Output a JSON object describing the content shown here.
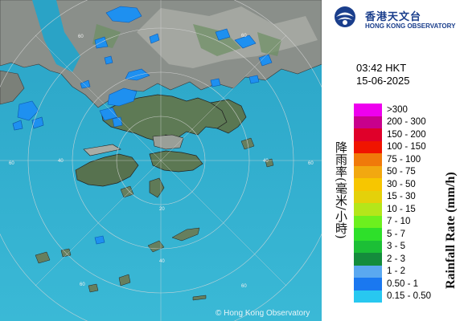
{
  "map": {
    "copyright": "© Hong Kong Observatory",
    "range_labels": [
      "60",
      "60",
      "60",
      "60",
      "60",
      "60",
      "40",
      "40",
      "40",
      "20"
    ]
  },
  "header": {
    "logo_zh": "香港天文台",
    "logo_en": "HONG KONG OBSERVATORY"
  },
  "timestamp": {
    "time": "03:42 HKT",
    "date": "15-06-2025"
  },
  "legend": {
    "title_zh": "降雨率(毫米/小時)",
    "title_en": "Rainfall Rate (mm/h)",
    "items": [
      {
        "label": ">300",
        "color": "#ee00ee"
      },
      {
        "label": "200 - 300",
        "color": "#c8008c"
      },
      {
        "label": "150 - 200",
        "color": "#e0002a"
      },
      {
        "label": "100 - 150",
        "color": "#f01400"
      },
      {
        "label": "75 - 100",
        "color": "#f07a0a"
      },
      {
        "label": "50 - 75",
        "color": "#f2a810"
      },
      {
        "label": "30 - 50",
        "color": "#f7c600"
      },
      {
        "label": "15 - 30",
        "color": "#e4d10a"
      },
      {
        "label": "10 - 15",
        "color": "#b4e61a"
      },
      {
        "label": "7 - 10",
        "color": "#6cf01e"
      },
      {
        "label": "5 - 7",
        "color": "#2ee02a"
      },
      {
        "label": "3 - 5",
        "color": "#1cbf36"
      },
      {
        "label": "2 - 3",
        "color": "#148c3c"
      },
      {
        "label": "1 - 2",
        "color": "#5aa8f0"
      },
      {
        "label": "0.50 - 1",
        "color": "#1a78f0"
      },
      {
        "label": "0.15 - 0.50",
        "color": "#28c8f0"
      }
    ]
  }
}
